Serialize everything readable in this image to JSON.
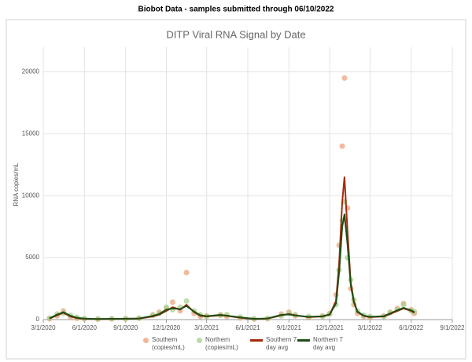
{
  "header": {
    "title": "Biobot Data - samples submitted through 06/10/2022"
  },
  "chart_data": {
    "type": "line",
    "title": "DITP Viral RNA Signal by Date",
    "y_label": "RNA copies/mL",
    "x": [
      "3/15/2020",
      "4/1/2020",
      "4/15/2020",
      "5/1/2020",
      "5/15/2020",
      "6/1/2020",
      "7/1/2020",
      "8/1/2020",
      "9/1/2020",
      "10/1/2020",
      "11/1/2020",
      "11/15/2020",
      "12/1/2020",
      "12/15/2020",
      "1/1/2021",
      "1/15/2021",
      "2/1/2021",
      "2/15/2021",
      "3/1/2021",
      "4/1/2021",
      "4/15/2021",
      "5/15/2021",
      "6/15/2021",
      "7/15/2021",
      "8/15/2021",
      "9/1/2021",
      "9/15/2021",
      "10/15/2021",
      "11/15/2021",
      "12/1/2021",
      "12/15/2021",
      "12/22/2021",
      "12/29/2021",
      "1/3/2022",
      "1/10/2022",
      "1/17/2022",
      "1/24/2022",
      "2/1/2022",
      "2/15/2022",
      "3/1/2022",
      "4/1/2022",
      "4/15/2022",
      "5/1/2022",
      "5/15/2022",
      "6/1/2022",
      "6/8/2022"
    ],
    "series": [
      {
        "name": "Southern (copies/mL)",
        "mode": "markers",
        "color": "#eba47f",
        "values": [
          60,
          300,
          700,
          200,
          100,
          40,
          30,
          70,
          50,
          100,
          400,
          600,
          900,
          1400,
          700,
          3800,
          500,
          250,
          300,
          400,
          250,
          120,
          40,
          60,
          450,
          600,
          300,
          150,
          300,
          500,
          2000,
          6000,
          14000,
          19500,
          9000,
          2500,
          1200,
          500,
          250,
          150,
          300,
          600,
          900,
          1300,
          800,
          500
        ]
      },
      {
        "name": "Northern (copies/mL)",
        "mode": "markers",
        "color": "#a9d08e",
        "values": [
          120,
          450,
          500,
          350,
          180,
          90,
          60,
          50,
          80,
          120,
          350,
          500,
          1000,
          800,
          1000,
          1500,
          700,
          400,
          250,
          350,
          400,
          200,
          70,
          100,
          300,
          500,
          400,
          250,
          250,
          450,
          1200,
          4000,
          8000,
          9500,
          5000,
          3200,
          1600,
          700,
          350,
          250,
          250,
          550,
          800,
          1200,
          700,
          650
        ]
      },
      {
        "name": "Southern 7 day avg",
        "mode": "lines",
        "color": "#a52a0c",
        "values": [
          80,
          350,
          550,
          250,
          120,
          60,
          40,
          50,
          60,
          80,
          250,
          400,
          700,
          1000,
          800,
          1200,
          600,
          300,
          250,
          350,
          300,
          150,
          50,
          80,
          350,
          450,
          350,
          200,
          250,
          400,
          1500,
          4500,
          9500,
          11500,
          7000,
          3000,
          1500,
          600,
          300,
          200,
          250,
          450,
          700,
          900,
          700,
          550
        ]
      },
      {
        "name": "Northern 7 day avg",
        "mode": "lines",
        "color": "#1f4d14",
        "values": [
          100,
          400,
          600,
          300,
          150,
          80,
          50,
          60,
          70,
          90,
          300,
          450,
          800,
          900,
          850,
          1100,
          650,
          350,
          280,
          380,
          320,
          180,
          60,
          90,
          380,
          420,
          330,
          220,
          270,
          420,
          1300,
          3800,
          7500,
          8500,
          6000,
          2800,
          1400,
          650,
          320,
          220,
          280,
          500,
          750,
          950,
          750,
          600
        ]
      }
    ],
    "xlim": [
      "3/1/2020",
      "9/1/2022"
    ],
    "xticks": [
      "3/1/2020",
      "6/1/2020",
      "9/1/2020",
      "12/1/2020",
      "3/1/2021",
      "6/1/2021",
      "9/1/2021",
      "12/1/2021",
      "3/1/2022",
      "6/1/2022",
      "9/1/2022"
    ],
    "ylim": [
      0,
      22000
    ],
    "yticks": [
      0,
      5000,
      10000,
      15000,
      20000
    ],
    "grid": true,
    "legend": "bottom"
  }
}
